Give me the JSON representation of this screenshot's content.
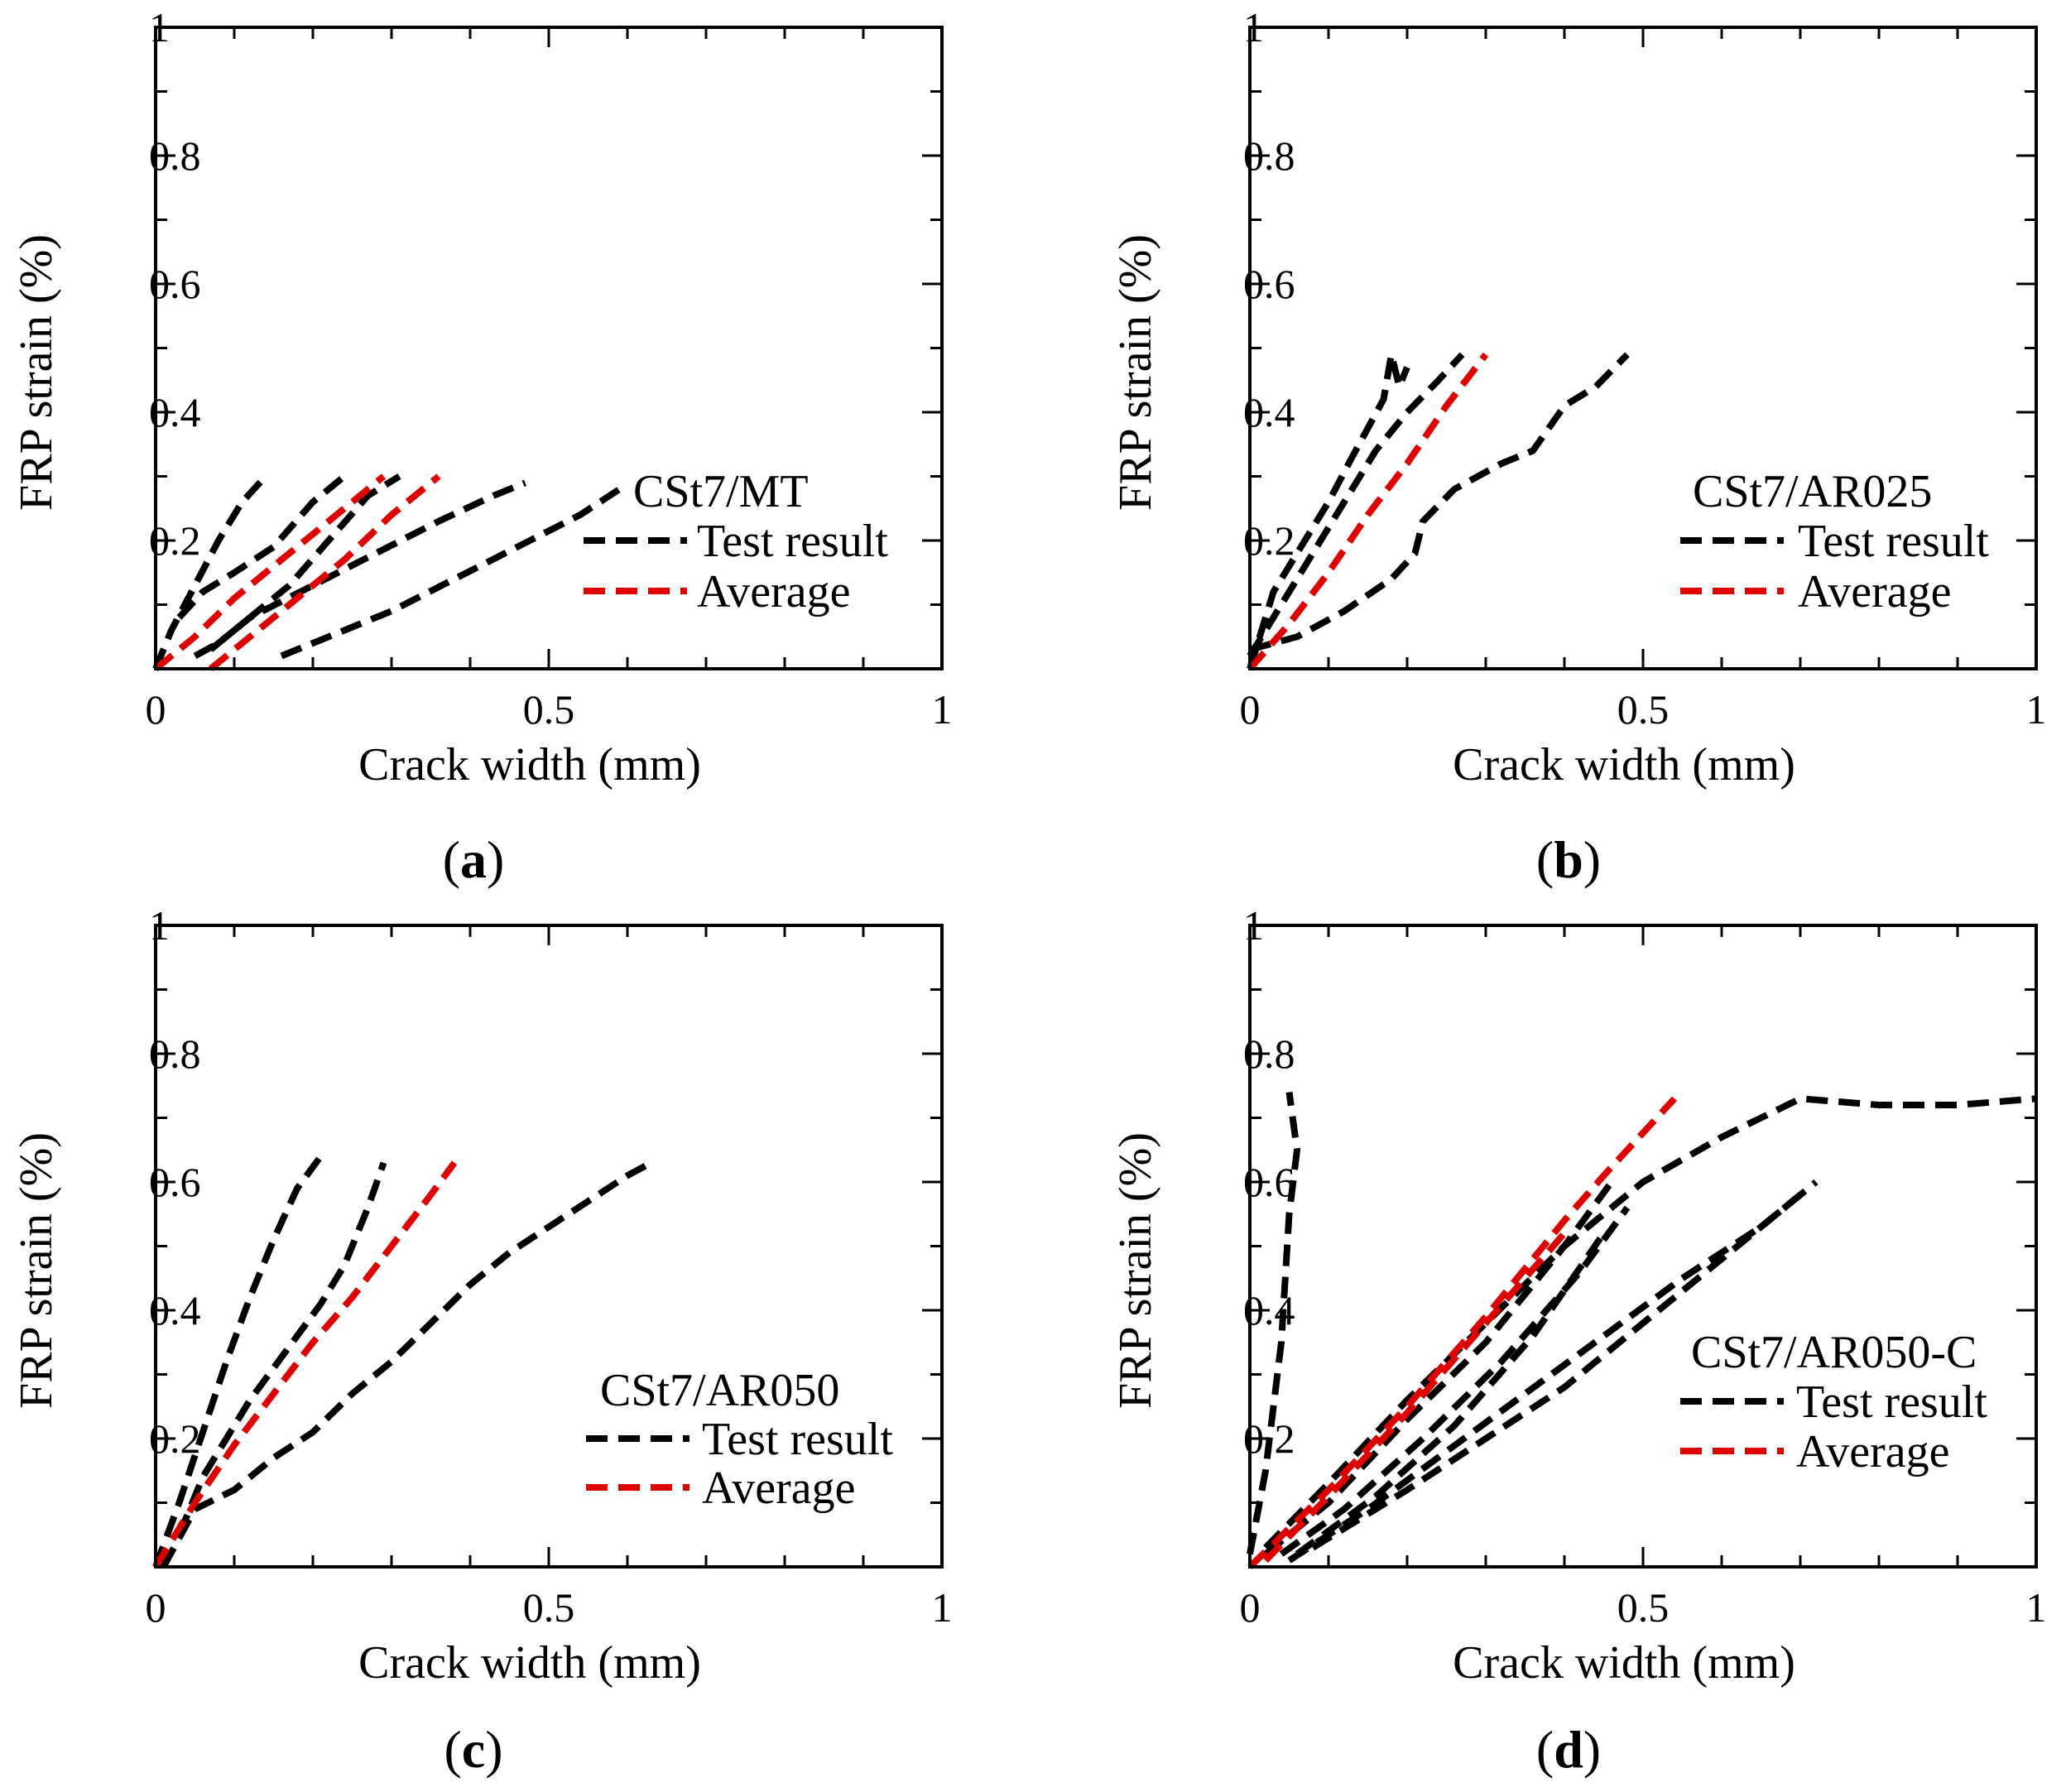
{
  "chart_data": [
    {
      "type": "line",
      "panel": "a",
      "xlabel": "Crack width (mm)",
      "ylabel": "FRP strain (%)",
      "xlim": [
        0,
        1
      ],
      "ylim": [
        0,
        1
      ],
      "xticks": [
        "0",
        "0.5",
        "1"
      ],
      "yticks": [
        "0.2",
        "0.4",
        "0.6",
        "0.8",
        "1"
      ],
      "legend_title": "CSt7/MT",
      "legend": [
        "Test result",
        "Average"
      ],
      "colors": {
        "test": "#000000",
        "average": "#e00000"
      },
      "series": [
        {
          "name": "Test result",
          "x": [
            0.0,
            0.02,
            0.05,
            0.08,
            0.11,
            0.14
          ],
          "y": [
            0.0,
            0.06,
            0.13,
            0.2,
            0.26,
            0.3
          ]
        },
        {
          "name": "Test result",
          "x": [
            0.03,
            0.06,
            0.1,
            0.15,
            0.2,
            0.24
          ],
          "y": [
            0.08,
            0.12,
            0.15,
            0.19,
            0.26,
            0.3
          ]
        },
        {
          "name": "Test result",
          "x": [
            0.05,
            0.08,
            0.12,
            0.17,
            0.22,
            0.27,
            0.31
          ],
          "y": [
            0.02,
            0.04,
            0.08,
            0.13,
            0.2,
            0.27,
            0.3
          ]
        },
        {
          "name": "Test result",
          "x": [
            0.07,
            0.12,
            0.2,
            0.28,
            0.36,
            0.43,
            0.47
          ],
          "y": [
            0.03,
            0.08,
            0.13,
            0.18,
            0.23,
            0.27,
            0.29
          ]
        },
        {
          "name": "Test result",
          "x": [
            0.16,
            0.22,
            0.3,
            0.38,
            0.46,
            0.54,
            0.59
          ],
          "y": [
            0.02,
            0.05,
            0.09,
            0.14,
            0.19,
            0.24,
            0.28
          ]
        },
        {
          "name": "Average",
          "x": [
            0.0,
            0.05,
            0.1,
            0.15,
            0.2,
            0.25,
            0.29
          ],
          "y": [
            0.0,
            0.05,
            0.11,
            0.16,
            0.21,
            0.26,
            0.3
          ]
        },
        {
          "name": "Average",
          "x": [
            0.07,
            0.12,
            0.18,
            0.24,
            0.3,
            0.36
          ],
          "y": [
            0.0,
            0.05,
            0.11,
            0.17,
            0.24,
            0.3
          ]
        }
      ]
    },
    {
      "type": "line",
      "panel": "b",
      "xlabel": "Crack width (mm)",
      "ylabel": "FRP strain (%)",
      "xlim": [
        0,
        1
      ],
      "ylim": [
        0,
        1
      ],
      "xticks": [
        "0",
        "0.5",
        "1"
      ],
      "yticks": [
        "0.2",
        "0.4",
        "0.6",
        "0.8",
        "1"
      ],
      "legend_title": "CSt7/AR025",
      "legend": [
        "Test result",
        "Average"
      ],
      "colors": {
        "test": "#000000",
        "average": "#e00000"
      },
      "series": [
        {
          "name": "Test result",
          "x": [
            0.0,
            0.03,
            0.06,
            0.1,
            0.13,
            0.17,
            0.18,
            0.19,
            0.2
          ],
          "y": [
            0.0,
            0.12,
            0.18,
            0.26,
            0.33,
            0.42,
            0.49,
            0.44,
            0.47
          ]
        },
        {
          "name": "Test result",
          "x": [
            0.0,
            0.04,
            0.08,
            0.12,
            0.16,
            0.2,
            0.24,
            0.27
          ],
          "y": [
            0.02,
            0.1,
            0.18,
            0.26,
            0.34,
            0.4,
            0.45,
            0.49
          ]
        },
        {
          "name": "Test result",
          "x": [
            0.0,
            0.06,
            0.12,
            0.18,
            0.21,
            0.22,
            0.26,
            0.32,
            0.36,
            0.4,
            0.44,
            0.48
          ],
          "y": [
            0.03,
            0.05,
            0.09,
            0.14,
            0.18,
            0.23,
            0.28,
            0.32,
            0.34,
            0.41,
            0.44,
            0.49
          ]
        },
        {
          "name": "Average",
          "x": [
            0.0,
            0.05,
            0.1,
            0.15,
            0.2,
            0.25,
            0.3
          ],
          "y": [
            0.0,
            0.07,
            0.15,
            0.24,
            0.32,
            0.41,
            0.49
          ]
        }
      ]
    },
    {
      "type": "line",
      "panel": "c",
      "xlabel": "Crack width (mm)",
      "ylabel": "FRP strain (%)",
      "xlim": [
        0,
        1
      ],
      "ylim": [
        0,
        1
      ],
      "xticks": [
        "0",
        "0.5",
        "1"
      ],
      "yticks": [
        "0.2",
        "0.4",
        "0.6",
        "0.8",
        "1"
      ],
      "legend_title": "CSt7/AR050",
      "legend": [
        "Test result",
        "Average"
      ],
      "colors": {
        "test": "#000000",
        "average": "#e00000"
      },
      "series": [
        {
          "name": "Test result",
          "x": [
            0.0,
            0.03,
            0.06,
            0.09,
            0.12,
            0.15,
            0.18,
            0.21
          ],
          "y": [
            0.0,
            0.1,
            0.21,
            0.32,
            0.42,
            0.51,
            0.59,
            0.64
          ]
        },
        {
          "name": "Test result",
          "x": [
            0.03,
            0.06,
            0.09,
            0.12,
            0.15,
            0.18,
            0.21,
            0.24,
            0.27,
            0.29
          ],
          "y": [
            0.05,
            0.14,
            0.2,
            0.26,
            0.31,
            0.36,
            0.41,
            0.47,
            0.56,
            0.63
          ]
        },
        {
          "name": "Test result",
          "x": [
            0.01,
            0.05,
            0.1,
            0.15,
            0.2,
            0.25,
            0.3,
            0.35,
            0.4,
            0.45,
            0.5,
            0.55,
            0.6,
            0.63
          ],
          "y": [
            0.0,
            0.09,
            0.12,
            0.17,
            0.21,
            0.27,
            0.32,
            0.38,
            0.44,
            0.49,
            0.53,
            0.57,
            0.61,
            0.63
          ]
        },
        {
          "name": "Average",
          "x": [
            0.0,
            0.05,
            0.1,
            0.15,
            0.2,
            0.25,
            0.3,
            0.35,
            0.38
          ],
          "y": [
            0.0,
            0.1,
            0.19,
            0.27,
            0.35,
            0.42,
            0.5,
            0.58,
            0.63
          ]
        }
      ]
    },
    {
      "type": "line",
      "panel": "d",
      "xlabel": "Crack width (mm)",
      "ylabel": "FRP strain (%)",
      "xlim": [
        0,
        1
      ],
      "ylim": [
        0,
        1
      ],
      "xticks": [
        "0",
        "0.5",
        "1"
      ],
      "yticks": [
        "0.2",
        "0.4",
        "0.6",
        "0.8",
        "1"
      ],
      "legend_title": "CSt7/AR050-C",
      "legend": [
        "Test result",
        "Average"
      ],
      "colors": {
        "test": "#000000",
        "average": "#e00000"
      },
      "series": [
        {
          "name": "Test result",
          "x": [
            0.0,
            0.02,
            0.04,
            0.05,
            0.06,
            0.05
          ],
          "y": [
            0.02,
            0.15,
            0.35,
            0.55,
            0.65,
            0.74
          ]
        },
        {
          "name": "Test result",
          "x": [
            0.02,
            0.1,
            0.2,
            0.3,
            0.4,
            0.5,
            0.6,
            0.7,
            0.8,
            0.9,
            1.0
          ],
          "y": [
            0.03,
            0.13,
            0.26,
            0.38,
            0.5,
            0.6,
            0.67,
            0.73,
            0.72,
            0.72,
            0.73
          ]
        },
        {
          "name": "Test result",
          "x": [
            0.02,
            0.1,
            0.2,
            0.3,
            0.4,
            0.46
          ],
          "y": [
            0.02,
            0.1,
            0.23,
            0.35,
            0.5,
            0.6
          ]
        },
        {
          "name": "Test result",
          "x": [
            0.04,
            0.12,
            0.22,
            0.32,
            0.42,
            0.48
          ],
          "y": [
            0.02,
            0.09,
            0.2,
            0.32,
            0.46,
            0.56
          ]
        },
        {
          "name": "Test result",
          "x": [
            0.05,
            0.15,
            0.25,
            0.35,
            0.45,
            0.55,
            0.65,
            0.72
          ],
          "y": [
            0.01,
            0.09,
            0.18,
            0.27,
            0.36,
            0.45,
            0.53,
            0.6
          ]
        },
        {
          "name": "Test result",
          "x": [
            0.08,
            0.2,
            0.3,
            0.4,
            0.5,
            0.6,
            0.7
          ],
          "y": [
            0.03,
            0.12,
            0.2,
            0.28,
            0.38,
            0.48,
            0.58
          ]
        },
        {
          "name": "Test result",
          "x": [
            0.06,
            0.16,
            0.26,
            0.36,
            0.45
          ],
          "y": [
            0.02,
            0.11,
            0.22,
            0.36,
            0.52
          ]
        },
        {
          "name": "Average",
          "x": [
            0.0,
            0.1,
            0.2,
            0.3,
            0.4,
            0.45,
            0.54
          ],
          "y": [
            0.0,
            0.12,
            0.25,
            0.39,
            0.54,
            0.61,
            0.73
          ]
        },
        {
          "name": "Average",
          "x": [
            0.02,
            0.1,
            0.2,
            0.3,
            0.4
          ],
          "y": [
            0.01,
            0.11,
            0.24,
            0.38,
            0.52
          ]
        }
      ]
    }
  ],
  "captions": [
    {
      "open": "(",
      "letter": "a",
      "close": ")"
    },
    {
      "open": "(",
      "letter": "b",
      "close": ")"
    },
    {
      "open": "(",
      "letter": "c",
      "close": ")"
    },
    {
      "open": "(",
      "letter": "d",
      "close": ")"
    }
  ]
}
